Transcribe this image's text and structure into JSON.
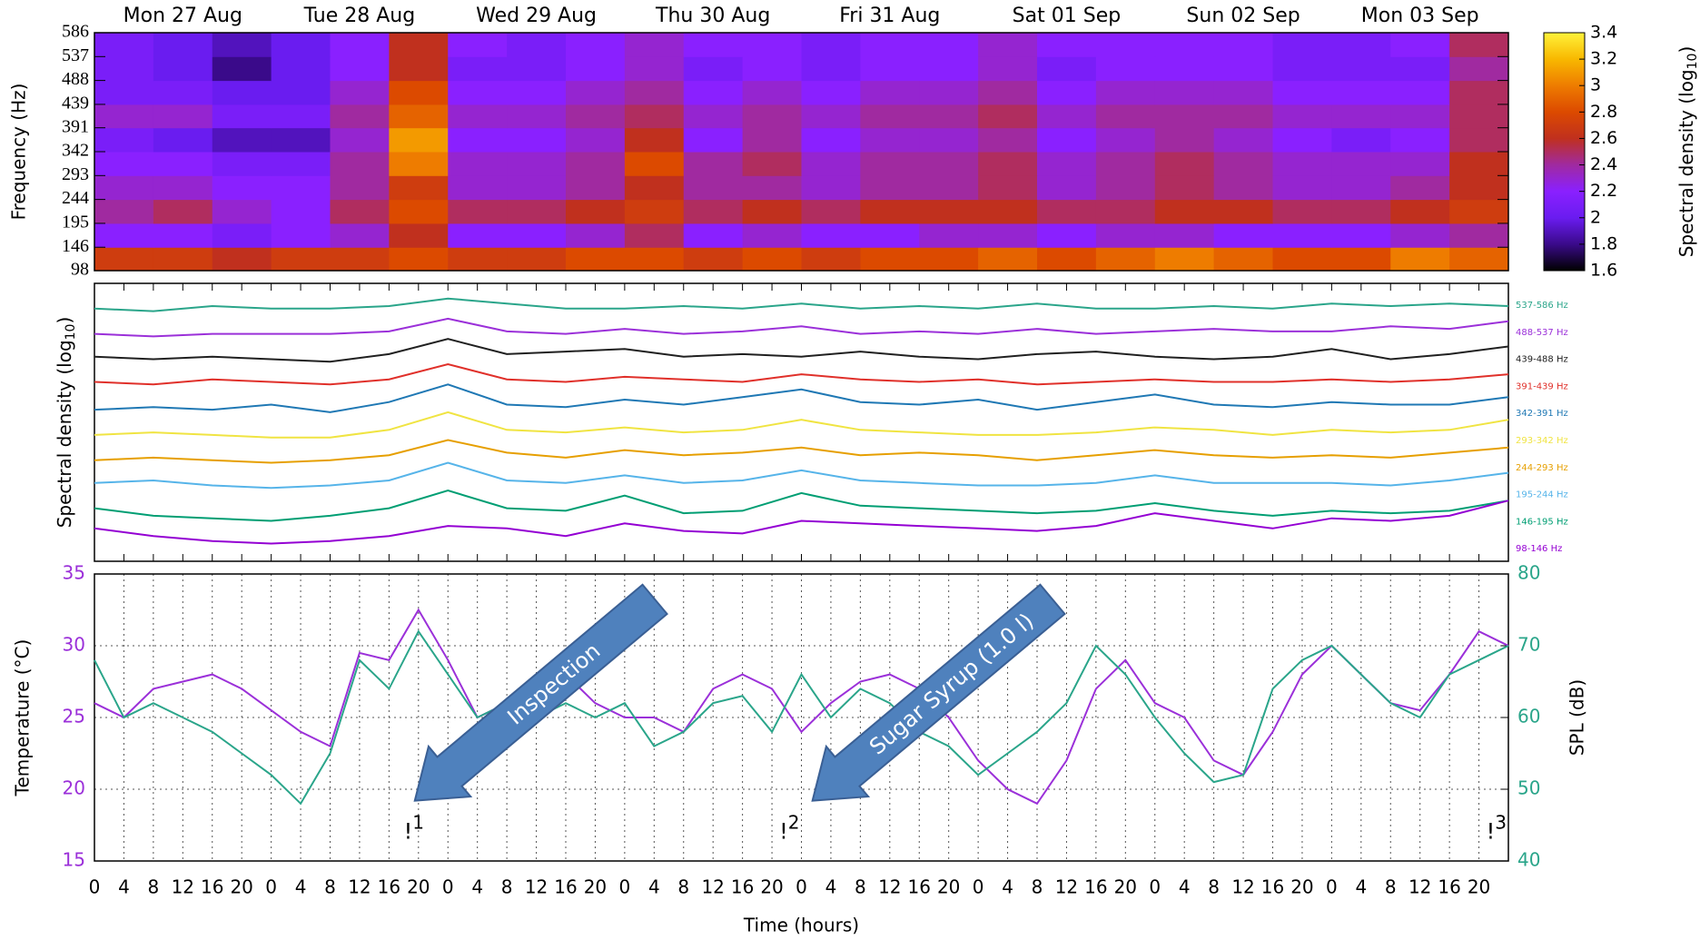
{
  "chart_data": [
    {
      "type": "heatmap",
      "ylabel": "Frequency (Hz)",
      "xlim": [
        0,
        192
      ],
      "x_edges": [
        0,
        8,
        16,
        24,
        32,
        40,
        48,
        56,
        64,
        72,
        80,
        88,
        96,
        104,
        112,
        120,
        128,
        136,
        144,
        152,
        160,
        168,
        176,
        184,
        192
      ],
      "ylim": [
        98,
        586
      ],
      "yticks": [
        98,
        146,
        195,
        244,
        293,
        342,
        391,
        439,
        488,
        537,
        586
      ],
      "top_xticks": [
        {
          "value": 12,
          "label": "Mon 27 Aug"
        },
        {
          "value": 36,
          "label": "Tue 28 Aug"
        },
        {
          "value": 60,
          "label": "Wed 29 Aug"
        },
        {
          "value": 84,
          "label": "Thu 30 Aug"
        },
        {
          "value": 108,
          "label": "Fri 31 Aug"
        },
        {
          "value": 132,
          "label": "Sat 01 Sep"
        },
        {
          "value": 156,
          "label": "Sun 02 Sep"
        },
        {
          "value": 180,
          "label": "Mon 03 Sep"
        }
      ],
      "z": [
        [
          2.7,
          2.7,
          2.6,
          2.7,
          2.7,
          2.8,
          2.7,
          2.7,
          2.8,
          2.8,
          2.7,
          2.8,
          2.7,
          2.8,
          2.8,
          2.9,
          2.8,
          2.9,
          3.0,
          2.9,
          2.8,
          2.8,
          3.0,
          2.9
        ],
        [
          2.2,
          2.2,
          2.1,
          2.2,
          2.3,
          2.6,
          2.2,
          2.2,
          2.3,
          2.5,
          2.2,
          2.3,
          2.2,
          2.2,
          2.3,
          2.3,
          2.2,
          2.3,
          2.3,
          2.2,
          2.2,
          2.2,
          2.3,
          2.4
        ],
        [
          2.4,
          2.5,
          2.3,
          2.2,
          2.5,
          2.8,
          2.5,
          2.5,
          2.6,
          2.7,
          2.5,
          2.6,
          2.5,
          2.6,
          2.6,
          2.6,
          2.5,
          2.5,
          2.6,
          2.6,
          2.5,
          2.5,
          2.6,
          2.7
        ],
        [
          2.3,
          2.3,
          2.2,
          2.2,
          2.4,
          2.7,
          2.3,
          2.3,
          2.4,
          2.6,
          2.4,
          2.4,
          2.3,
          2.4,
          2.4,
          2.5,
          2.3,
          2.4,
          2.5,
          2.4,
          2.3,
          2.3,
          2.4,
          2.6
        ],
        [
          2.2,
          2.2,
          2.1,
          2.1,
          2.4,
          3.0,
          2.3,
          2.3,
          2.4,
          2.8,
          2.4,
          2.5,
          2.3,
          2.4,
          2.4,
          2.5,
          2.3,
          2.4,
          2.5,
          2.4,
          2.3,
          2.3,
          2.3,
          2.6
        ],
        [
          2.1,
          2.0,
          1.9,
          1.9,
          2.3,
          3.1,
          2.2,
          2.2,
          2.3,
          2.6,
          2.2,
          2.4,
          2.2,
          2.3,
          2.3,
          2.4,
          2.2,
          2.3,
          2.4,
          2.3,
          2.2,
          2.1,
          2.2,
          2.5
        ],
        [
          2.3,
          2.3,
          2.1,
          2.1,
          2.4,
          2.9,
          2.3,
          2.3,
          2.4,
          2.5,
          2.3,
          2.4,
          2.3,
          2.4,
          2.4,
          2.5,
          2.3,
          2.4,
          2.4,
          2.4,
          2.3,
          2.3,
          2.3,
          2.5
        ],
        [
          2.1,
          2.1,
          2.0,
          2.0,
          2.3,
          2.8,
          2.2,
          2.2,
          2.3,
          2.4,
          2.2,
          2.3,
          2.2,
          2.3,
          2.3,
          2.4,
          2.2,
          2.3,
          2.3,
          2.3,
          2.2,
          2.2,
          2.2,
          2.5
        ],
        [
          2.1,
          2.0,
          1.8,
          2.0,
          2.2,
          2.6,
          2.1,
          2.1,
          2.2,
          2.3,
          2.1,
          2.2,
          2.1,
          2.2,
          2.2,
          2.3,
          2.1,
          2.2,
          2.2,
          2.2,
          2.1,
          2.1,
          2.1,
          2.4
        ],
        [
          2.1,
          2.0,
          1.9,
          2.0,
          2.2,
          2.6,
          2.2,
          2.1,
          2.2,
          2.3,
          2.2,
          2.2,
          2.1,
          2.2,
          2.2,
          2.3,
          2.2,
          2.2,
          2.2,
          2.2,
          2.1,
          2.1,
          2.2,
          2.5
        ]
      ],
      "zlim": [
        1.6,
        3.4
      ],
      "zticks": [
        1.6,
        1.8,
        2,
        2.2,
        2.4,
        2.6,
        2.8,
        3,
        3.2,
        3.4
      ],
      "colorbar_label": [
        "Spectral density (log",
        "10",
        ")"
      ],
      "colormap": [
        "#000000",
        "#3a0a8a",
        "#6a1cf0",
        "#8a20ff",
        "#a02aa0",
        "#c0301e",
        "#dc4a00",
        "#ee7c00",
        "#f8b800",
        "#fff23a"
      ]
    },
    {
      "type": "line",
      "ylabel": [
        "Spectral density (log",
        "10",
        ")"
      ],
      "xlim": [
        0,
        192
      ],
      "ylim": [
        0,
        11
      ],
      "x": [
        0,
        8,
        16,
        24,
        32,
        40,
        48,
        56,
        64,
        72,
        80,
        88,
        96,
        104,
        112,
        120,
        128,
        136,
        144,
        152,
        160,
        168,
        176,
        184,
        192
      ],
      "series": [
        {
          "name": "537-586 Hz",
          "color": "#2aa58a",
          "values": [
            10,
            9.9,
            10.1,
            10,
            10,
            10.1,
            10.4,
            10.2,
            10,
            10,
            10.1,
            10,
            10.2,
            10,
            10.1,
            10,
            10.2,
            10,
            10,
            10.1,
            10,
            10.2,
            10.1,
            10.2,
            10.1
          ]
        },
        {
          "name": "488-537 Hz",
          "color": "#9b30d9",
          "values": [
            9,
            8.9,
            9,
            9,
            9,
            9.1,
            9.6,
            9.1,
            9,
            9.2,
            9,
            9.1,
            9.3,
            9,
            9.1,
            9,
            9.2,
            9,
            9.1,
            9.2,
            9.1,
            9.1,
            9.3,
            9.2,
            9.5
          ]
        },
        {
          "name": "439-488 Hz",
          "color": "#202020",
          "values": [
            8.1,
            8,
            8.1,
            8,
            7.9,
            8.2,
            8.8,
            8.2,
            8.3,
            8.4,
            8.1,
            8.2,
            8.1,
            8.3,
            8.1,
            8,
            8.2,
            8.3,
            8.1,
            8,
            8.1,
            8.4,
            8,
            8.2,
            8.5
          ]
        },
        {
          "name": "391-439 Hz",
          "color": "#e0302a",
          "values": [
            7.1,
            7,
            7.2,
            7.1,
            7,
            7.2,
            7.8,
            7.2,
            7.1,
            7.3,
            7.2,
            7.1,
            7.4,
            7.2,
            7.1,
            7.2,
            7,
            7.1,
            7.2,
            7.1,
            7.1,
            7.2,
            7.1,
            7.2,
            7.4
          ]
        },
        {
          "name": "342-391 Hz",
          "color": "#1f78b4",
          "values": [
            6,
            6.1,
            6,
            6.2,
            5.9,
            6.3,
            7,
            6.2,
            6.1,
            6.4,
            6.2,
            6.5,
            6.8,
            6.3,
            6.2,
            6.4,
            6,
            6.3,
            6.6,
            6.2,
            6.1,
            6.3,
            6.2,
            6.2,
            6.5
          ]
        },
        {
          "name": "293-342 Hz",
          "color": "#f0e442",
          "values": [
            5,
            5.1,
            5,
            4.9,
            4.9,
            5.2,
            5.9,
            5.2,
            5.1,
            5.3,
            5.1,
            5.2,
            5.6,
            5.2,
            5.1,
            5,
            5,
            5.1,
            5.3,
            5.2,
            5,
            5.2,
            5.1,
            5.2,
            5.6
          ]
        },
        {
          "name": "244-293 Hz",
          "color": "#e69f00",
          "values": [
            4,
            4.1,
            4,
            3.9,
            4,
            4.2,
            4.8,
            4.3,
            4.1,
            4.4,
            4.2,
            4.3,
            4.5,
            4.2,
            4.3,
            4.2,
            4,
            4.2,
            4.4,
            4.2,
            4.1,
            4.2,
            4.1,
            4.3,
            4.5
          ]
        },
        {
          "name": "195-244 Hz",
          "color": "#56b4e9",
          "values": [
            3.1,
            3.2,
            3,
            2.9,
            3,
            3.2,
            3.9,
            3.2,
            3.1,
            3.4,
            3.1,
            3.2,
            3.6,
            3.2,
            3.1,
            3,
            3,
            3.1,
            3.4,
            3.1,
            3.1,
            3.1,
            3,
            3.2,
            3.5
          ]
        },
        {
          "name": "146-195 Hz",
          "color": "#009e73",
          "values": [
            2.1,
            1.8,
            1.7,
            1.6,
            1.8,
            2.1,
            2.8,
            2.1,
            2,
            2.6,
            1.9,
            2,
            2.7,
            2.2,
            2.1,
            2,
            1.9,
            2,
            2.3,
            2,
            1.8,
            2,
            1.9,
            2,
            2.4
          ]
        },
        {
          "name": "98-146 Hz",
          "color": "#9400d3",
          "values": [
            1.3,
            1,
            0.8,
            0.7,
            0.8,
            1,
            1.4,
            1.3,
            1,
            1.5,
            1.2,
            1.1,
            1.6,
            1.5,
            1.4,
            1.3,
            1.2,
            1.4,
            1.9,
            1.6,
            1.3,
            1.7,
            1.6,
            1.8,
            2.4
          ]
        }
      ]
    },
    {
      "type": "dual_line",
      "xlabel": "Time (hours)",
      "ylabel": "Temperature (°C)",
      "y2label": "SPL (dB)",
      "grid": true,
      "xlim": [
        0,
        192
      ],
      "ylim": [
        15,
        35
      ],
      "yticks": [
        15,
        20,
        25,
        30,
        35
      ],
      "y2lim": [
        40,
        80
      ],
      "y2ticks": [
        40,
        50,
        60,
        70,
        80
      ],
      "xticks": [
        0,
        4,
        8,
        12,
        16,
        20,
        {
          "value": 24,
          "label": "0"
        },
        {
          "value": 28,
          "label": "4"
        },
        {
          "value": 32,
          "label": "8"
        },
        {
          "value": 36,
          "label": "12"
        },
        {
          "value": 40,
          "label": "16"
        },
        {
          "value": 44,
          "label": "20"
        },
        {
          "value": 48,
          "label": "0"
        },
        {
          "value": 52,
          "label": "4"
        },
        {
          "value": 56,
          "label": "8"
        },
        {
          "value": 60,
          "label": "12"
        },
        {
          "value": 64,
          "label": "16"
        },
        {
          "value": 68,
          "label": "20"
        },
        {
          "value": 72,
          "label": "0"
        },
        {
          "value": 76,
          "label": "4"
        },
        {
          "value": 80,
          "label": "8"
        },
        {
          "value": 84,
          "label": "12"
        },
        {
          "value": 88,
          "label": "16"
        },
        {
          "value": 92,
          "label": "20"
        },
        {
          "value": 96,
          "label": "0"
        },
        {
          "value": 100,
          "label": "4"
        },
        {
          "value": 104,
          "label": "8"
        },
        {
          "value": 108,
          "label": "12"
        },
        {
          "value": 112,
          "label": "16"
        },
        {
          "value": 116,
          "label": "20"
        },
        {
          "value": 120,
          "label": "0"
        },
        {
          "value": 124,
          "label": "4"
        },
        {
          "value": 128,
          "label": "8"
        },
        {
          "value": 132,
          "label": "12"
        },
        {
          "value": 136,
          "label": "16"
        },
        {
          "value": 140,
          "label": "20"
        },
        {
          "value": 144,
          "label": "0"
        },
        {
          "value": 148,
          "label": "4"
        },
        {
          "value": 152,
          "label": "8"
        },
        {
          "value": 156,
          "label": "12"
        },
        {
          "value": 160,
          "label": "16"
        },
        {
          "value": 164,
          "label": "20"
        },
        {
          "value": 168,
          "label": "0"
        },
        {
          "value": 172,
          "label": "4"
        },
        {
          "value": 176,
          "label": "8"
        },
        {
          "value": 180,
          "label": "12"
        },
        {
          "value": 184,
          "label": "16"
        },
        {
          "value": 188,
          "label": "20"
        }
      ],
      "x": [
        0,
        4,
        8,
        12,
        16,
        20,
        24,
        28,
        32,
        36,
        40,
        44,
        48,
        52,
        56,
        60,
        64,
        68,
        72,
        76,
        80,
        84,
        88,
        92,
        96,
        100,
        104,
        108,
        112,
        116,
        120,
        124,
        128,
        132,
        136,
        140,
        144,
        148,
        152,
        156,
        160,
        164,
        168,
        172,
        176,
        180,
        184,
        188,
        192
      ],
      "series": [
        {
          "color": "#9b30d9",
          "values": [
            26,
            25,
            27,
            27.5,
            28,
            27,
            25.5,
            24,
            23,
            29.5,
            29,
            32.5,
            29,
            25,
            26,
            27.5,
            28,
            26,
            25,
            25,
            24,
            27,
            28,
            27,
            24,
            26,
            27.5,
            28,
            27,
            25,
            22,
            20,
            19,
            22,
            27,
            29,
            26,
            25,
            22,
            21,
            24,
            28,
            30,
            28,
            26,
            25.5,
            28,
            31,
            30
          ]
        },
        {
          "color": "#2aa58a",
          "axis": "y2",
          "values": [
            68,
            60,
            62,
            60,
            58,
            55,
            52,
            48,
            55,
            68,
            64,
            72,
            66,
            60,
            62,
            60,
            62,
            60,
            62,
            56,
            58,
            62,
            63,
            58,
            66,
            60,
            64,
            62,
            58,
            56,
            52,
            55,
            58,
            62,
            70,
            66,
            60,
            55,
            51,
            52,
            64,
            68,
            70,
            66,
            62,
            60,
            66,
            68,
            70
          ]
        }
      ],
      "event_symbol": "!",
      "events": [
        {
          "x": 42,
          "y": 17,
          "label": "1"
        },
        {
          "x": 93,
          "y": 17,
          "label": "2"
        },
        {
          "x": 189,
          "y": 17,
          "label": "3"
        }
      ],
      "annotations": [
        {
          "text": "Inspection",
          "x": 43.5,
          "y": 19.2
        },
        {
          "text": "Sugar Syrup (1.0 l)",
          "x": 97.5,
          "y": 19.2
        }
      ]
    }
  ]
}
